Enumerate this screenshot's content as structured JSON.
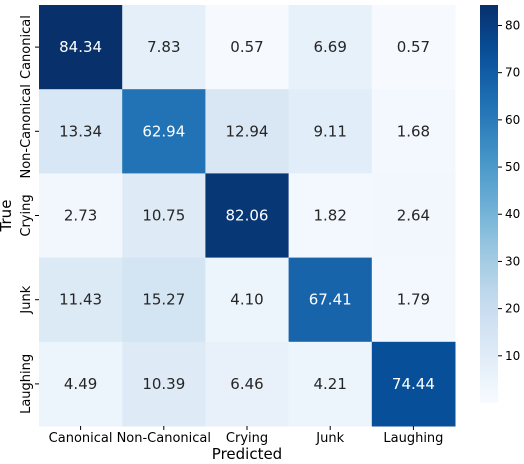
{
  "chart_data": {
    "type": "heatmap",
    "title": "",
    "xlabel": "Predicted",
    "ylabel": "True",
    "x_categories": [
      "Canonical",
      "Non-Canonical",
      "Crying",
      "Junk",
      "Laughing"
    ],
    "y_categories": [
      "Canonical",
      "Non-Canonical",
      "Crying",
      "Junk",
      "Laughing"
    ],
    "values": [
      [
        "84.34",
        "7.83",
        "0.57",
        "6.69",
        "0.57"
      ],
      [
        "13.34",
        "62.94",
        "12.94",
        "9.11",
        "1.68"
      ],
      [
        "2.73",
        "10.75",
        "82.06",
        "1.82",
        "2.64"
      ],
      [
        "11.43",
        "15.27",
        "4.10",
        "67.41",
        "1.79"
      ],
      [
        "4.49",
        "10.39",
        "6.46",
        "4.21",
        "74.44"
      ]
    ],
    "colormap": "Blues",
    "colorbar": {
      "vmin": 0,
      "vmax": 84.34,
      "ticks": [
        10,
        20,
        30,
        40,
        50,
        60,
        70,
        80
      ]
    }
  }
}
